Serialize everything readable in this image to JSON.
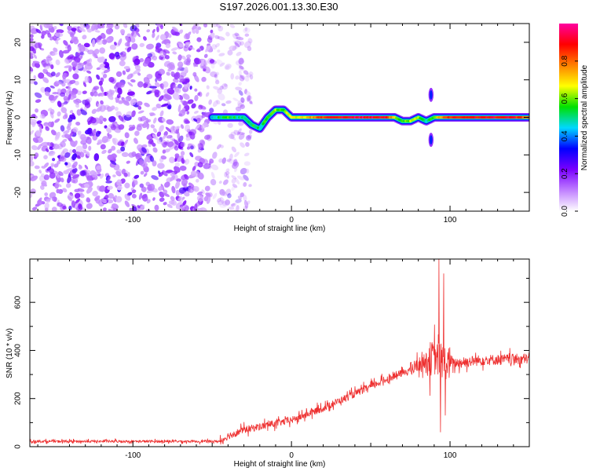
{
  "title": "S197.2026.001.13.30.E30",
  "chart_data": [
    {
      "type": "heatmap",
      "name": "spectrogram",
      "xlabel": "Height of straight line (km)",
      "ylabel": "Frequency (Hz)",
      "xlim": [
        -165,
        150
      ],
      "ylim": [
        -25,
        25
      ],
      "xticks": [
        -100,
        0,
        100
      ],
      "yticks": [
        -20,
        -10,
        0,
        10,
        20
      ],
      "colorbar": {
        "label": "Normalized spectral amplitude",
        "range": [
          0,
          1
        ],
        "ticks": [
          "0.0",
          "0.2",
          "0.4",
          "0.6",
          "0.8"
        ],
        "tick_values": [
          0.0,
          0.2,
          0.4,
          0.6,
          0.8
        ],
        "colors": [
          "#ffffff",
          "#c080ff",
          "#7a00ff",
          "#0000ff",
          "#00d8ff",
          "#00e000",
          "#ffff00",
          "#ff8000",
          "#ff0000",
          "#ff00a0"
        ]
      },
      "noise_region_x": [
        -165,
        -50
      ],
      "ridge": {
        "x": [
          -50,
          -40,
          -30,
          -25,
          -20,
          -15,
          -10,
          -5,
          0,
          10,
          20,
          40,
          60,
          65,
          70,
          75,
          80,
          85,
          90,
          95,
          100,
          120,
          140,
          150
        ],
        "freq": [
          0,
          0,
          0,
          -2,
          -3,
          0,
          2,
          2,
          0,
          0,
          0,
          0,
          0,
          0,
          -1,
          -1,
          0,
          -1,
          0,
          0,
          0,
          0,
          0,
          0
        ],
        "amplitude": [
          0.45,
          0.55,
          0.5,
          0.55,
          0.5,
          0.55,
          0.6,
          0.6,
          0.65,
          0.7,
          0.85,
          0.95,
          0.9,
          0.7,
          0.55,
          0.6,
          0.65,
          0.45,
          0.55,
          0.75,
          0.85,
          0.9,
          0.9,
          0.8
        ]
      },
      "spike": {
        "x": 88,
        "freq_range": [
          -8,
          8
        ]
      }
    },
    {
      "type": "line",
      "name": "snr",
      "xlabel": "Height of straight line (km)",
      "ylabel": "SNR (10 * v/v)",
      "xlim": [
        -165,
        150
      ],
      "ylim": [
        0,
        780
      ],
      "xticks": [
        -100,
        0,
        100
      ],
      "yticks": [
        0,
        200,
        400,
        600
      ],
      "color": "#ee3030",
      "trend": {
        "x": [
          -165,
          -45,
          -40,
          -30,
          0,
          20,
          40,
          60,
          75,
          80,
          85,
          90,
          95,
          100,
          120,
          150
        ],
        "y": [
          22,
          22,
          45,
          70,
          110,
          160,
          220,
          280,
          320,
          340,
          360,
          370,
          355,
          345,
          360,
          365
        ]
      },
      "noise_amplitude": [
        {
          "x": [
            -165,
            -45
          ],
          "amp": 10
        },
        {
          "x": [
            -45,
            75
          ],
          "amp": 30
        },
        {
          "x": [
            75,
            100
          ],
          "amp": 60
        },
        {
          "x": [
            100,
            150
          ],
          "amp": 45
        }
      ],
      "features": [
        {
          "x": 93,
          "y": 780
        },
        {
          "x": 94,
          "y": 60
        },
        {
          "x": 96,
          "y": 720
        },
        {
          "x": 97,
          "y": 130
        }
      ]
    }
  ]
}
